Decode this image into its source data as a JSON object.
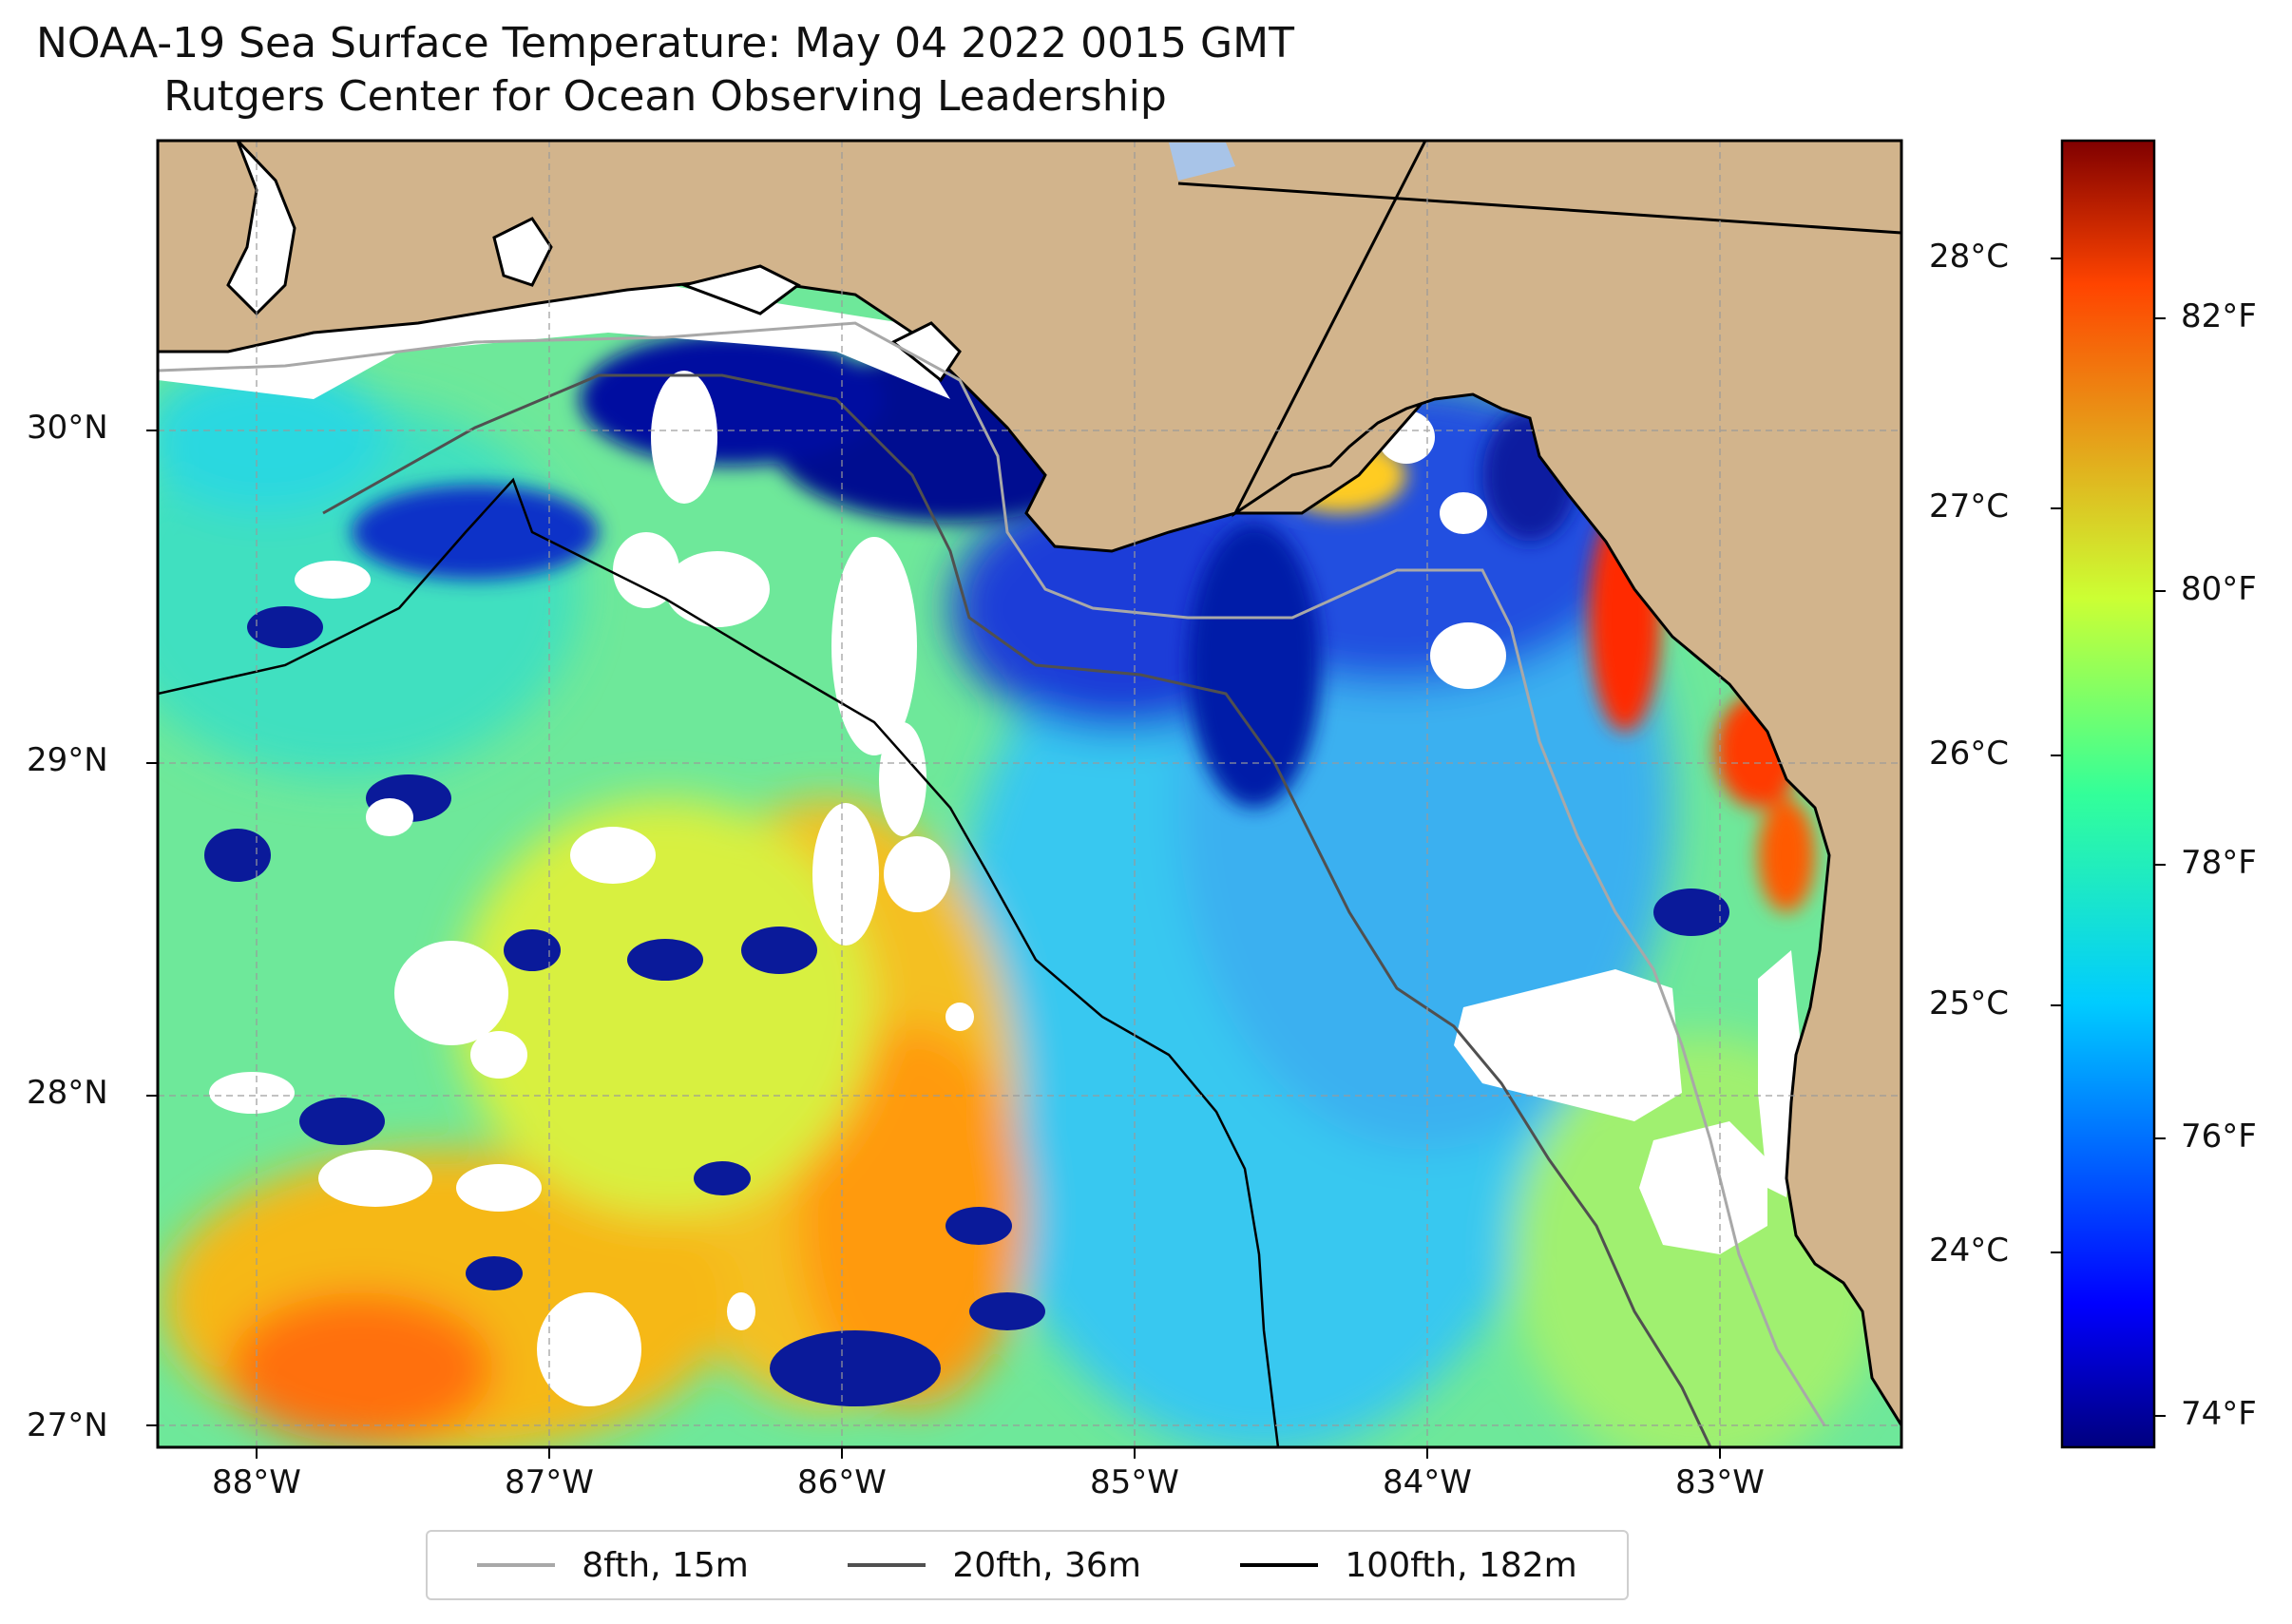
{
  "title": "NOAA-19 Sea Surface Temperature: May 04 2022 0015 GMT",
  "subtitle": "Rutgers Center for Ocean Observing Leadership",
  "latitude_labels": [
    "30°N",
    "29°N",
    "28°N",
    "27°N"
  ],
  "longitude_labels": [
    "88°W",
    "87°W",
    "86°W",
    "85°W",
    "84°W",
    "83°W"
  ],
  "colorbar": {
    "celsius_labels": [
      "28°C",
      "27°C",
      "26°C",
      "25°C",
      "24°C"
    ],
    "fahrenheit_labels": [
      "82°F",
      "80°F",
      "78°F",
      "76°F",
      "74°F"
    ],
    "colormap": "jet",
    "range_f": [
      73.6,
      83.2
    ]
  },
  "legend": [
    {
      "label": "8fth, 15m",
      "color": "#a8a8a8"
    },
    {
      "label": "20fth, 36m",
      "color": "#505050"
    },
    {
      "label": "100fth, 182m",
      "color": "#000000"
    }
  ],
  "colors": {
    "land": "#d2b48c",
    "cloud_mask": "#ffffff",
    "coastline": "#000000",
    "water_body": "#a8c4e8"
  }
}
